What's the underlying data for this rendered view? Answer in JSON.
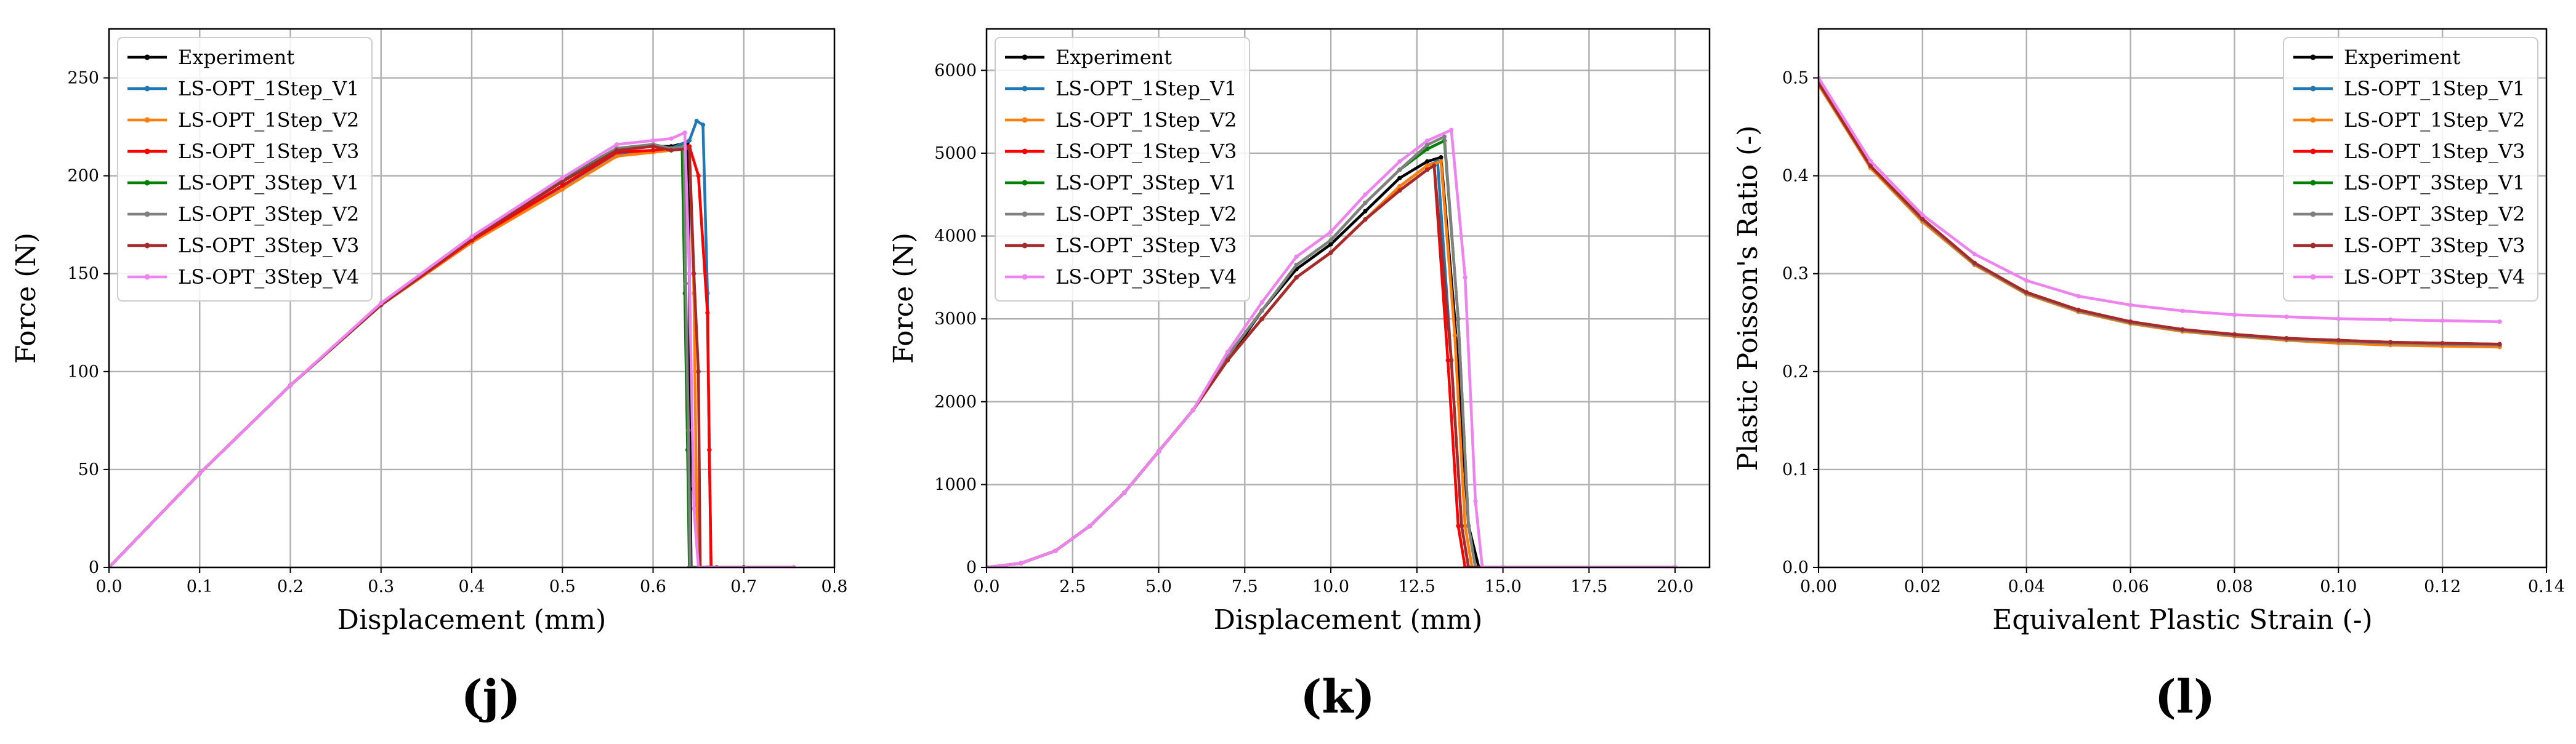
{
  "figure": {
    "panels": [
      "(j)",
      "(k)",
      "(l)"
    ]
  },
  "series_styles": [
    {
      "name": "Experiment",
      "color": "#000000"
    },
    {
      "name": "LS-OPT_1Step_V1",
      "color": "#1f77b4"
    },
    {
      "name": "LS-OPT_1Step_V2",
      "color": "#ff7f0e"
    },
    {
      "name": "LS-OPT_1Step_V3",
      "color": "#ff0000"
    },
    {
      "name": "LS-OPT_3Step_V1",
      "color": "#008000"
    },
    {
      "name": "LS-OPT_3Step_V2",
      "color": "#808080"
    },
    {
      "name": "LS-OPT_3Step_V3",
      "color": "#a52a2a"
    },
    {
      "name": "LS-OPT_3Step_V4",
      "color": "#ee82ee"
    }
  ],
  "chart_data": [
    {
      "type": "line",
      "panel": "(j)",
      "title": "",
      "xlabel": "Displacement (mm)",
      "ylabel": "Force (N)",
      "xlim": [
        0,
        0.8
      ],
      "ylim": [
        0,
        275
      ],
      "xticks": [
        0.0,
        0.1,
        0.2,
        0.3,
        0.4,
        0.5,
        0.6,
        0.7,
        0.8
      ],
      "xtick_labels": [
        "0.0",
        "0.1",
        "0.2",
        "0.3",
        "0.4",
        "0.5",
        "0.6",
        "0.7",
        "0.8"
      ],
      "yticks": [
        0,
        50,
        100,
        150,
        200,
        250
      ],
      "ytick_labels": [
        "0",
        "50",
        "100",
        "150",
        "200",
        "250"
      ],
      "grid": true,
      "legend": "upper-left",
      "series": [
        {
          "name": "Experiment",
          "x": [
            0,
            0.1,
            0.2,
            0.3,
            0.4,
            0.5,
            0.56,
            0.6,
            0.62,
            0.638,
            0.64,
            0.641,
            0.642,
            0.65,
            0.7,
            0.755
          ],
          "y": [
            0,
            48,
            93,
            134,
            168,
            197,
            214,
            215,
            215,
            217,
            150,
            40,
            0,
            0,
            0,
            0
          ]
        },
        {
          "name": "LS-OPT_1Step_V1",
          "x": [
            0,
            0.1,
            0.2,
            0.3,
            0.4,
            0.5,
            0.56,
            0.6,
            0.62,
            0.64,
            0.648,
            0.655,
            0.66,
            0.662,
            0.664,
            0.67,
            0.755
          ],
          "y": [
            0,
            48,
            93,
            134,
            166,
            194,
            211,
            213,
            214,
            218,
            228,
            226,
            140,
            60,
            0,
            0,
            0
          ]
        },
        {
          "name": "LS-OPT_1Step_V2",
          "x": [
            0,
            0.1,
            0.2,
            0.3,
            0.4,
            0.5,
            0.56,
            0.6,
            0.62,
            0.64,
            0.645,
            0.648,
            0.65,
            0.66,
            0.755
          ],
          "y": [
            0,
            48,
            93,
            134,
            166,
            193,
            210,
            212,
            213,
            215,
            140,
            30,
            0,
            0,
            0
          ]
        },
        {
          "name": "LS-OPT_1Step_V3",
          "x": [
            0,
            0.1,
            0.2,
            0.3,
            0.4,
            0.5,
            0.56,
            0.6,
            0.62,
            0.64,
            0.65,
            0.66,
            0.662,
            0.664,
            0.67,
            0.755
          ],
          "y": [
            0,
            48,
            93,
            134,
            167,
            195,
            212,
            213,
            214,
            215,
            200,
            130,
            60,
            0,
            0,
            0
          ]
        },
        {
          "name": "LS-OPT_3Step_V1",
          "x": [
            0,
            0.1,
            0.2,
            0.3,
            0.4,
            0.5,
            0.56,
            0.6,
            0.62,
            0.632,
            0.635,
            0.638,
            0.64,
            0.65,
            0.755
          ],
          "y": [
            0,
            48,
            93,
            134,
            168,
            198,
            214,
            216,
            214,
            215,
            140,
            60,
            0,
            0,
            0
          ]
        },
        {
          "name": "LS-OPT_3Step_V2",
          "x": [
            0,
            0.1,
            0.2,
            0.3,
            0.4,
            0.5,
            0.56,
            0.6,
            0.62,
            0.634,
            0.636,
            0.639,
            0.641,
            0.65,
            0.755
          ],
          "y": [
            0,
            48,
            93,
            134,
            168,
            197,
            214,
            216,
            214,
            215,
            145,
            70,
            0,
            0,
            0
          ]
        },
        {
          "name": "LS-OPT_3Step_V3",
          "x": [
            0,
            0.1,
            0.2,
            0.3,
            0.4,
            0.5,
            0.56,
            0.6,
            0.62,
            0.64,
            0.645,
            0.65,
            0.652,
            0.66,
            0.755
          ],
          "y": [
            0,
            48,
            93,
            134,
            168,
            197,
            213,
            215,
            213,
            214,
            150,
            100,
            0,
            0,
            0
          ]
        },
        {
          "name": "LS-OPT_3Step_V4",
          "x": [
            0,
            0.1,
            0.2,
            0.3,
            0.4,
            0.5,
            0.56,
            0.6,
            0.62,
            0.635,
            0.64,
            0.645,
            0.65,
            0.66,
            0.755
          ],
          "y": [
            0,
            48,
            93,
            135,
            169,
            199,
            216,
            218,
            219,
            222,
            150,
            30,
            0,
            0,
            0
          ]
        }
      ]
    },
    {
      "type": "line",
      "panel": "(k)",
      "title": "",
      "xlabel": "Displacement (mm)",
      "ylabel": "Force (N)",
      "xlim": [
        0,
        21
      ],
      "ylim": [
        0,
        6500
      ],
      "xticks": [
        0,
        2.5,
        5,
        7.5,
        10,
        12.5,
        15,
        17.5,
        20
      ],
      "xtick_labels": [
        "0.0",
        "2.5",
        "5.0",
        "7.5",
        "10.0",
        "12.5",
        "15.0",
        "17.5",
        "20.0"
      ],
      "yticks": [
        0,
        1000,
        2000,
        3000,
        4000,
        5000,
        6000
      ],
      "ytick_labels": [
        "0",
        "1000",
        "2000",
        "3000",
        "4000",
        "5000",
        "6000"
      ],
      "grid": true,
      "legend": "upper-left",
      "series": [
        {
          "name": "Experiment",
          "x": [
            0,
            1,
            2,
            3,
            4,
            5,
            6,
            7,
            8,
            9,
            10,
            11,
            12,
            12.8,
            13.2,
            13.6,
            14.0,
            14.3,
            15,
            20
          ],
          "y": [
            0,
            50,
            200,
            500,
            900,
            1400,
            1900,
            2500,
            3100,
            3600,
            3900,
            4300,
            4700,
            4900,
            4950,
            3000,
            500,
            0,
            0,
            0
          ]
        },
        {
          "name": "LS-OPT_1Step_V1",
          "x": [
            0,
            1,
            2,
            3,
            4,
            5,
            6,
            7,
            8,
            9,
            10,
            11,
            12,
            12.8,
            13.1,
            13.5,
            13.8,
            14.0,
            15,
            20
          ],
          "y": [
            0,
            50,
            200,
            500,
            900,
            1400,
            1900,
            2500,
            3000,
            3500,
            3800,
            4200,
            4600,
            4850,
            4900,
            2500,
            500,
            0,
            0,
            0
          ]
        },
        {
          "name": "LS-OPT_1Step_V2",
          "x": [
            0,
            1,
            2,
            3,
            4,
            5,
            6,
            7,
            8,
            9,
            10,
            11,
            12,
            12.8,
            13.2,
            13.6,
            13.9,
            14.1,
            15,
            20
          ],
          "y": [
            0,
            50,
            200,
            500,
            900,
            1400,
            1900,
            2500,
            3000,
            3500,
            3800,
            4200,
            4600,
            4850,
            4900,
            2800,
            500,
            0,
            0,
            0
          ]
        },
        {
          "name": "LS-OPT_1Step_V3",
          "x": [
            0,
            1,
            2,
            3,
            4,
            5,
            6,
            7,
            8,
            9,
            10,
            11,
            12,
            12.8,
            13.0,
            13.4,
            13.7,
            13.9,
            15,
            20
          ],
          "y": [
            0,
            50,
            200,
            500,
            900,
            1400,
            1900,
            2500,
            3000,
            3500,
            3800,
            4200,
            4550,
            4800,
            4850,
            2500,
            500,
            0,
            0,
            0
          ]
        },
        {
          "name": "LS-OPT_3Step_V1",
          "x": [
            0,
            1,
            2,
            3,
            4,
            5,
            6,
            7,
            8,
            9,
            10,
            11,
            12,
            12.8,
            13.3,
            13.7,
            14.0,
            14.2,
            15,
            20
          ],
          "y": [
            0,
            50,
            200,
            500,
            900,
            1400,
            1900,
            2550,
            3100,
            3650,
            3950,
            4400,
            4800,
            5050,
            5150,
            3000,
            500,
            0,
            0,
            0
          ]
        },
        {
          "name": "LS-OPT_3Step_V2",
          "x": [
            0,
            1,
            2,
            3,
            4,
            5,
            6,
            7,
            8,
            9,
            10,
            11,
            12,
            12.8,
            13.3,
            13.7,
            14.0,
            14.2,
            15,
            20
          ],
          "y": [
            0,
            50,
            200,
            500,
            900,
            1400,
            1900,
            2550,
            3100,
            3650,
            3950,
            4400,
            4800,
            5100,
            5200,
            3000,
            500,
            0,
            0,
            0
          ]
        },
        {
          "name": "LS-OPT_3Step_V3",
          "x": [
            0,
            1,
            2,
            3,
            4,
            5,
            6,
            7,
            8,
            9,
            10,
            11,
            12,
            12.8,
            13.0,
            13.5,
            13.8,
            14.0,
            15,
            20
          ],
          "y": [
            0,
            50,
            200,
            500,
            900,
            1400,
            1900,
            2500,
            3000,
            3500,
            3800,
            4200,
            4550,
            4800,
            4850,
            2500,
            500,
            0,
            0,
            0
          ]
        },
        {
          "name": "LS-OPT_3Step_V4",
          "x": [
            0,
            1,
            2,
            3,
            4,
            5,
            6,
            7,
            8,
            9,
            10,
            11,
            12,
            12.8,
            13.5,
            13.9,
            14.2,
            14.4,
            15,
            20
          ],
          "y": [
            0,
            50,
            200,
            500,
            900,
            1400,
            1900,
            2600,
            3200,
            3750,
            4050,
            4500,
            4900,
            5150,
            5280,
            3500,
            800,
            0,
            0,
            0
          ]
        }
      ]
    },
    {
      "type": "line",
      "panel": "(l)",
      "title": "",
      "xlabel": "Equivalent Plastic Strain (-)",
      "ylabel": "Plastic Poisson's Ratio (-)",
      "xlim": [
        0,
        0.14
      ],
      "ylim": [
        0,
        0.55
      ],
      "xticks": [
        0,
        0.02,
        0.04,
        0.06,
        0.08,
        0.1,
        0.12,
        0.14
      ],
      "xtick_labels": [
        "0.00",
        "0.02",
        "0.04",
        "0.06",
        "0.08",
        "0.10",
        "0.12",
        "0.14"
      ],
      "yticks": [
        0,
        0.1,
        0.2,
        0.3,
        0.4,
        0.5
      ],
      "ytick_labels": [
        "0.0",
        "0.1",
        "0.2",
        "0.3",
        "0.4",
        "0.5"
      ],
      "grid": true,
      "legend": "upper-right",
      "series": [
        {
          "name": "Experiment",
          "x": [
            0,
            0.01,
            0.02,
            0.03,
            0.04,
            0.05,
            0.06,
            0.07,
            0.08,
            0.09,
            0.1,
            0.11,
            0.12,
            0.131
          ],
          "y": [
            0.495,
            0.41,
            0.355,
            0.31,
            0.28,
            0.262,
            0.25,
            0.242,
            0.237,
            0.233,
            0.231,
            0.229,
            0.228,
            0.227
          ]
        },
        {
          "name": "LS-OPT_1Step_V1",
          "x": [
            0,
            0.01,
            0.02,
            0.03,
            0.04,
            0.05,
            0.06,
            0.07,
            0.08,
            0.09,
            0.1,
            0.11,
            0.12,
            0.131
          ],
          "y": [
            0.495,
            0.41,
            0.355,
            0.31,
            0.28,
            0.262,
            0.25,
            0.242,
            0.237,
            0.233,
            0.231,
            0.229,
            0.228,
            0.227
          ]
        },
        {
          "name": "LS-OPT_1Step_V2",
          "x": [
            0,
            0.01,
            0.02,
            0.03,
            0.04,
            0.05,
            0.06,
            0.07,
            0.08,
            0.09,
            0.1,
            0.11,
            0.12,
            0.131
          ],
          "y": [
            0.493,
            0.408,
            0.353,
            0.309,
            0.279,
            0.261,
            0.249,
            0.241,
            0.236,
            0.232,
            0.229,
            0.227,
            0.226,
            0.225
          ]
        },
        {
          "name": "LS-OPT_1Step_V3",
          "x": [
            0,
            0.01,
            0.02,
            0.03,
            0.04,
            0.05,
            0.06,
            0.07,
            0.08,
            0.09,
            0.1,
            0.11,
            0.12,
            0.131
          ],
          "y": [
            0.495,
            0.41,
            0.355,
            0.31,
            0.281,
            0.263,
            0.251,
            0.243,
            0.238,
            0.234,
            0.232,
            0.23,
            0.229,
            0.228
          ]
        },
        {
          "name": "LS-OPT_3Step_V1",
          "x": [
            0,
            0.01,
            0.02,
            0.03,
            0.04,
            0.05,
            0.06,
            0.07,
            0.08,
            0.09,
            0.1,
            0.11,
            0.12,
            0.131
          ],
          "y": [
            0.495,
            0.41,
            0.355,
            0.31,
            0.28,
            0.262,
            0.25,
            0.242,
            0.237,
            0.233,
            0.231,
            0.229,
            0.228,
            0.227
          ]
        },
        {
          "name": "LS-OPT_3Step_V2",
          "x": [
            0,
            0.01,
            0.02,
            0.03,
            0.04,
            0.05,
            0.06,
            0.07,
            0.08,
            0.09,
            0.1,
            0.11,
            0.12,
            0.131
          ],
          "y": [
            0.495,
            0.41,
            0.355,
            0.31,
            0.28,
            0.262,
            0.25,
            0.242,
            0.237,
            0.233,
            0.231,
            0.229,
            0.228,
            0.227
          ]
        },
        {
          "name": "LS-OPT_3Step_V3",
          "x": [
            0,
            0.01,
            0.02,
            0.03,
            0.04,
            0.05,
            0.06,
            0.07,
            0.08,
            0.09,
            0.1,
            0.11,
            0.12,
            0.131
          ],
          "y": [
            0.495,
            0.41,
            0.356,
            0.311,
            0.281,
            0.263,
            0.251,
            0.243,
            0.238,
            0.234,
            0.232,
            0.23,
            0.229,
            0.228
          ]
        },
        {
          "name": "LS-OPT_3Step_V4",
          "x": [
            0,
            0.01,
            0.02,
            0.03,
            0.04,
            0.05,
            0.06,
            0.07,
            0.08,
            0.09,
            0.1,
            0.11,
            0.12,
            0.131
          ],
          "y": [
            0.5,
            0.415,
            0.36,
            0.32,
            0.293,
            0.277,
            0.268,
            0.262,
            0.258,
            0.256,
            0.254,
            0.253,
            0.252,
            0.251
          ]
        }
      ]
    }
  ]
}
